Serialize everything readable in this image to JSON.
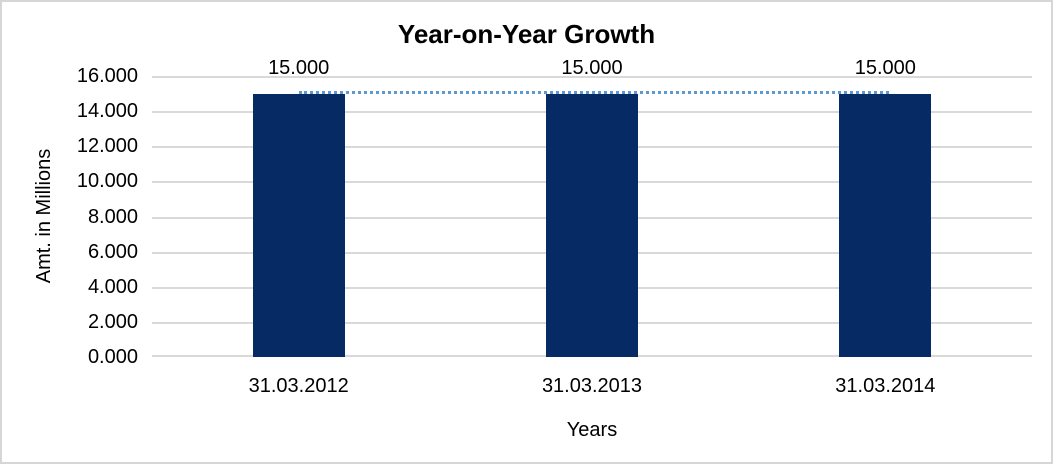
{
  "chart_data": {
    "type": "bar",
    "title": "Year-on-Year Growth",
    "xlabel": "Years",
    "ylabel": "Amt. in Millions",
    "categories": [
      "31.03.2012",
      "31.03.2013",
      "31.03.2014"
    ],
    "series": [
      {
        "name": "bars",
        "type": "bar",
        "values": [
          15,
          15,
          15
        ],
        "color": "#052a64"
      },
      {
        "name": "trend",
        "type": "line",
        "values": [
          15,
          15,
          15
        ],
        "line_style": "dotted",
        "color": "#5b9bd5"
      }
    ],
    "value_labels": [
      "15.000",
      "15.000",
      "15.000"
    ],
    "ylim": [
      0,
      16
    ],
    "ytick_step": 2,
    "ytick_labels": [
      "0.000",
      "2.000",
      "4.000",
      "6.000",
      "8.000",
      "10.000",
      "12.000",
      "14.000",
      "16.000"
    ],
    "grid": true,
    "legend_position": "none",
    "colors": {
      "bar_fill": "#052a64",
      "trend_line": "#5b9bd5",
      "gridline": "#d9d9d9",
      "text": "#000000",
      "frame_border": "#d6d6d6",
      "background": "#ffffff"
    }
  }
}
